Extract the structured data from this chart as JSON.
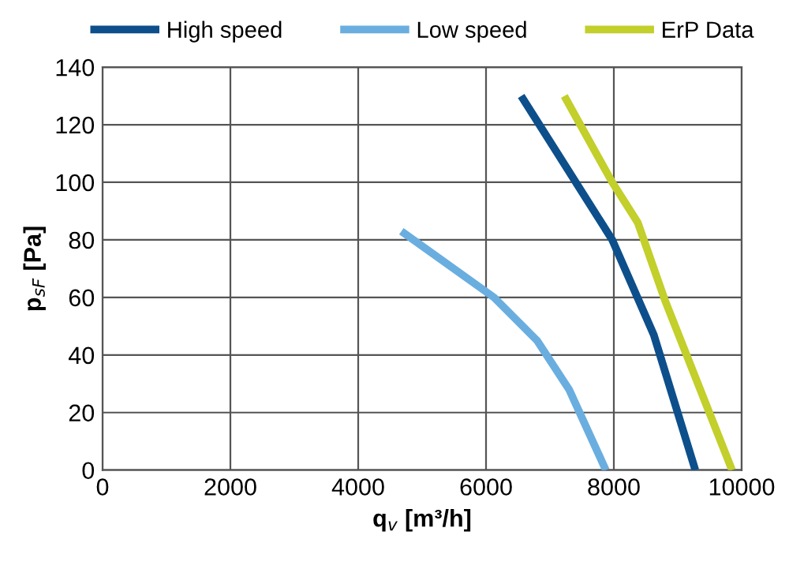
{
  "chart_data": {
    "type": "line",
    "xlabel": "q$_{v}$ [m³/h]",
    "ylabel": "p$_{sF}$ [Pa]",
    "xlim": [
      0,
      10000
    ],
    "xticks": [
      0,
      2000,
      4000,
      6000,
      8000,
      10000
    ],
    "ylim": [
      0,
      140
    ],
    "yticks": [
      0,
      20,
      40,
      60,
      80,
      100,
      120,
      140
    ],
    "grid": true,
    "legend": "top",
    "line_style": "solid",
    "series": [
      {
        "name": "High speed",
        "color": "#0d4f8b",
        "x": [
          6550,
          7975,
          8625,
          9275
        ],
        "values": [
          130,
          80,
          47,
          0
        ]
      },
      {
        "name": "Low speed",
        "color": "#6aaee0",
        "x": [
          4675,
          6125,
          6800,
          7300,
          7875
        ],
        "values": [
          83,
          60,
          45,
          28,
          0
        ]
      },
      {
        "name": "ErP Data",
        "color": "#c3cf2a",
        "x": [
          7225,
          7975,
          8375,
          8800,
          9850
        ],
        "values": [
          130,
          100,
          86,
          59,
          0
        ]
      }
    ]
  }
}
